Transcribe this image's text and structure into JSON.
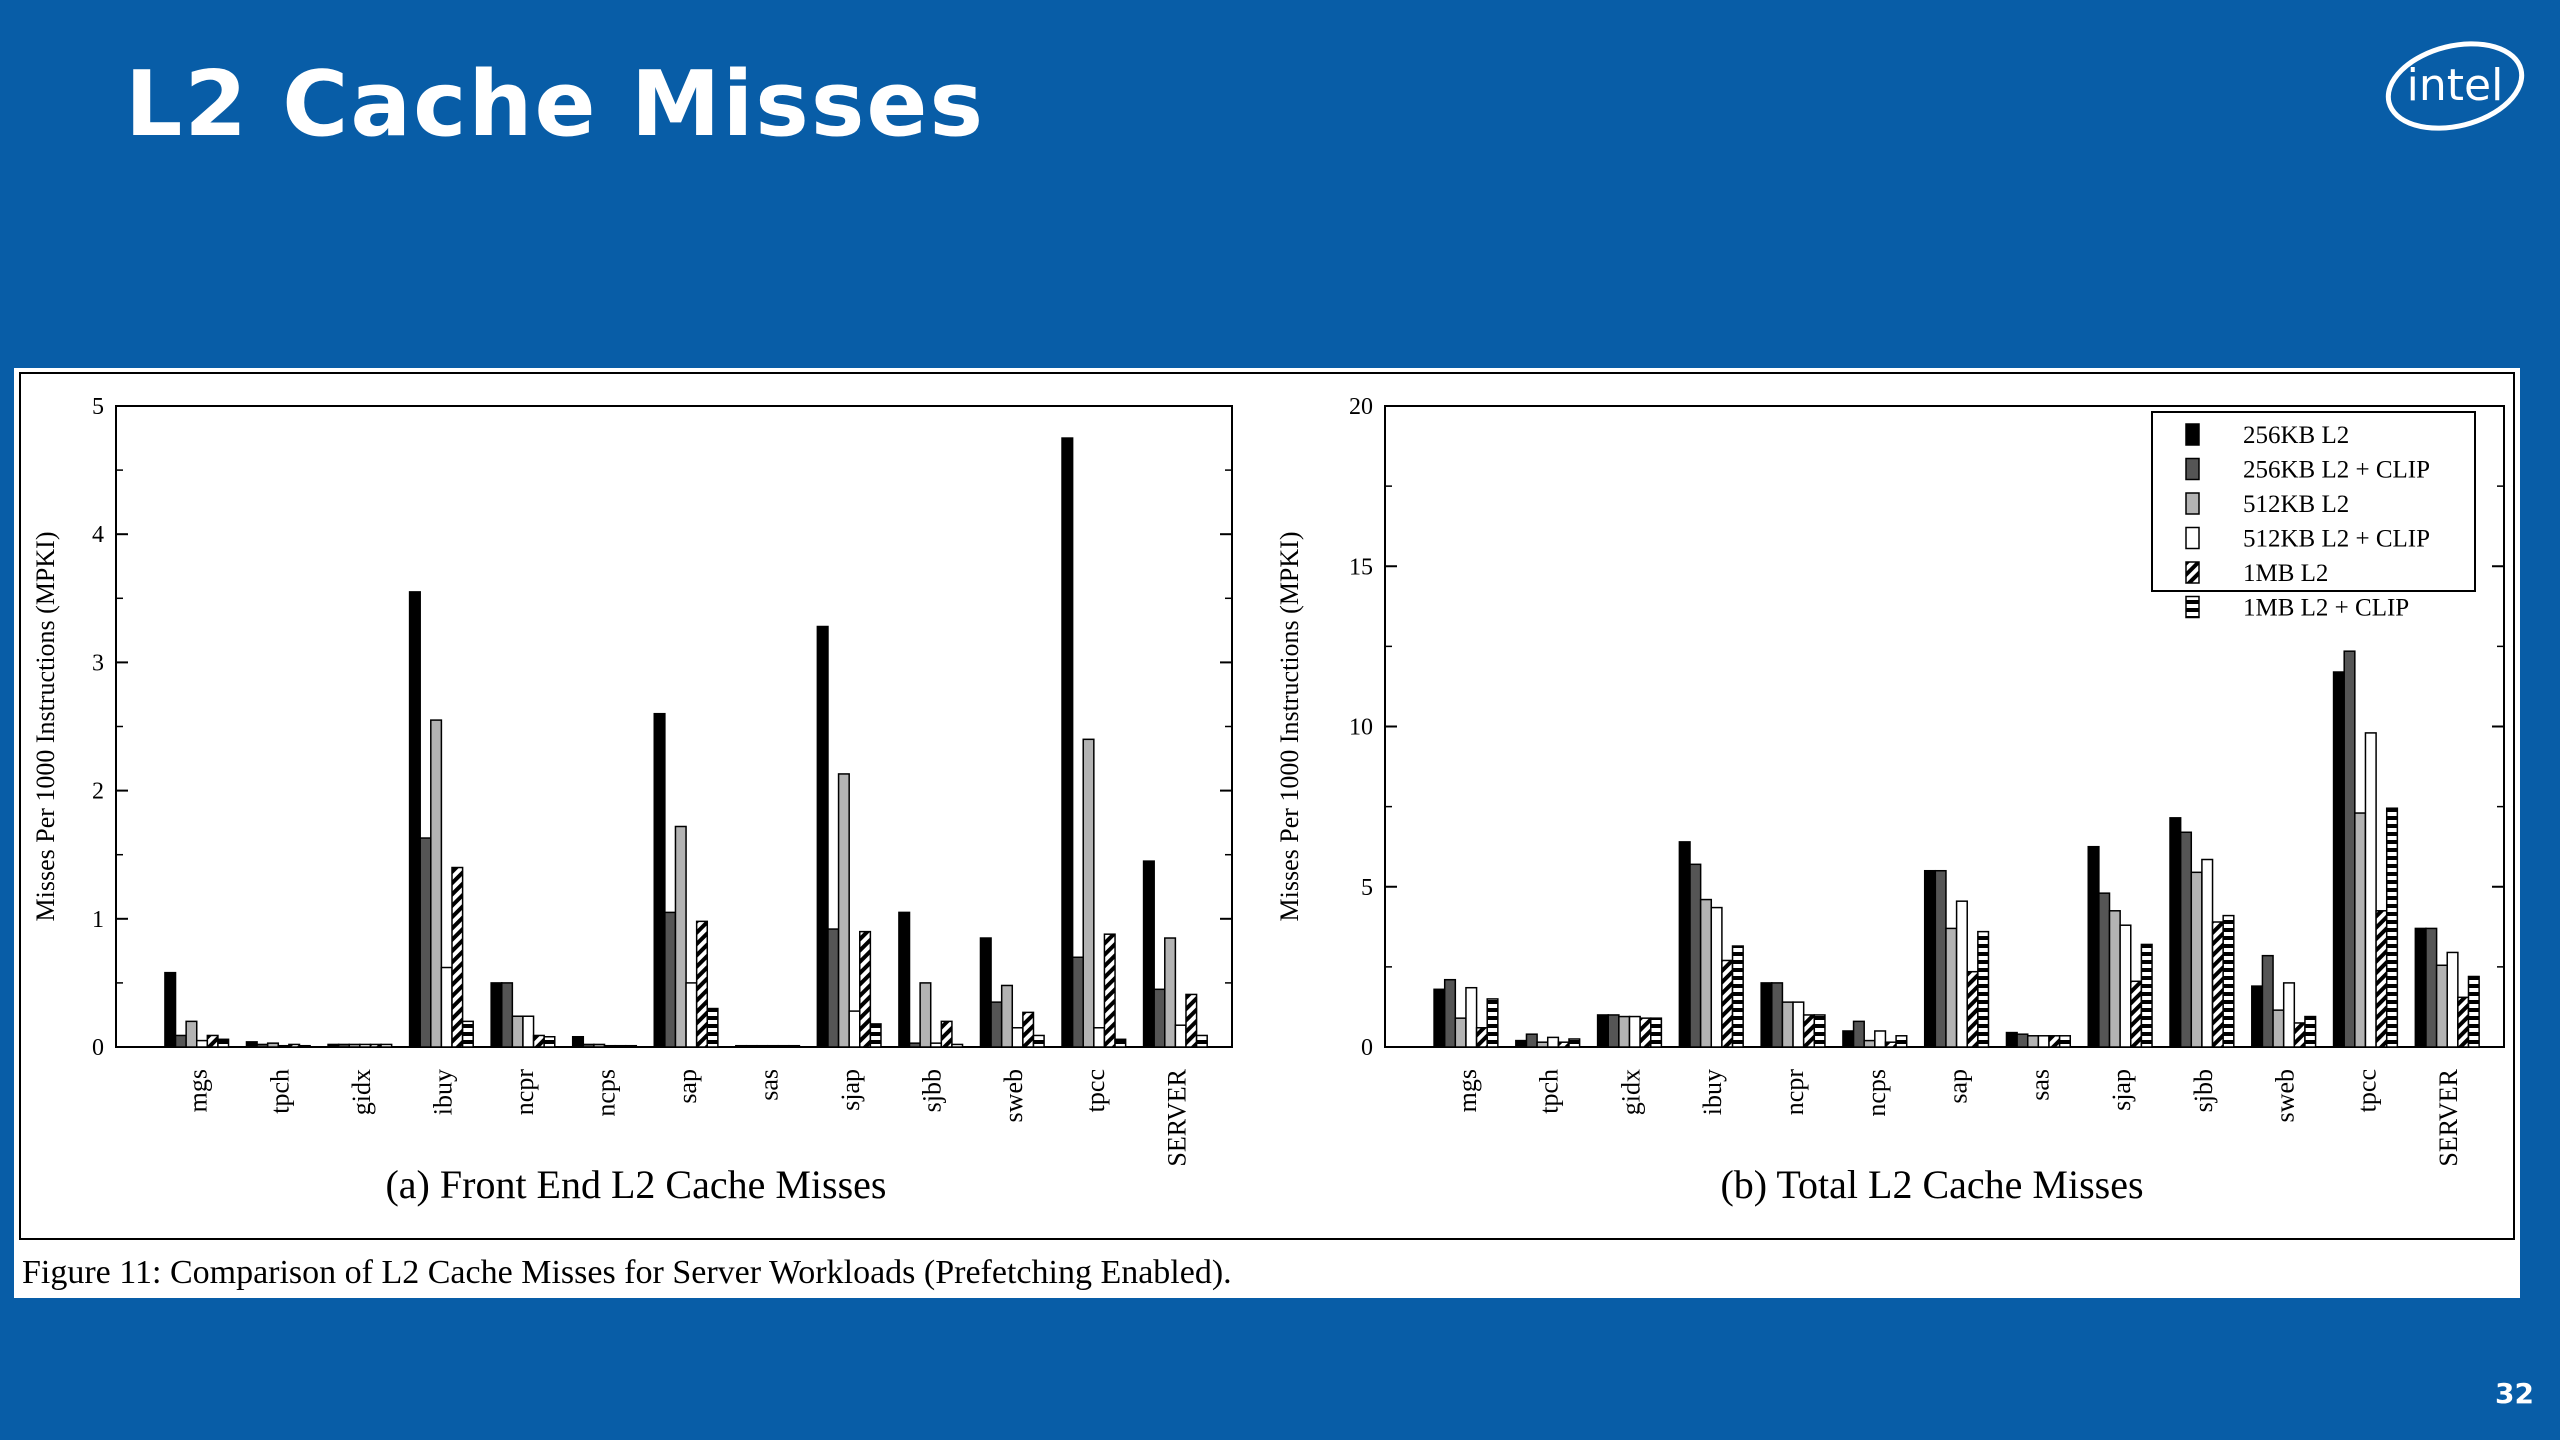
{
  "slide": {
    "title": "L2 Cache Misses",
    "page_number": "32",
    "logo_text": "intel"
  },
  "caption": "Figure 11:  Comparison of L2 Cache Misses for Server Workloads (Prefetching Enabled).",
  "colors": {
    "background": "#085da7",
    "title": "#ffffff",
    "panel": "#ffffff"
  },
  "legend": {
    "placement": "top-right",
    "entries": [
      {
        "label": "256KB L2",
        "pattern": "black"
      },
      {
        "label": "256KB L2 + CLIP",
        "pattern": "dark-gray"
      },
      {
        "label": "512KB L2",
        "pattern": "light-gray"
      },
      {
        "label": "512KB L2 + CLIP",
        "pattern": "white"
      },
      {
        "label": "1MB L2",
        "pattern": "diagonal"
      },
      {
        "label": "1MB L2 + CLIP",
        "pattern": "horizontal"
      }
    ]
  },
  "chart_data": [
    {
      "type": "bar",
      "title": "(a) Front End L2 Cache Misses",
      "ylabel": "Misses Per 1000 Instructions (MPKI)",
      "ylim": [
        0,
        5
      ],
      "yticks": [
        "0",
        "1",
        "2",
        "3",
        "4",
        "5"
      ],
      "categories": [
        "mgs",
        "tpch",
        "gidx",
        "ibuy",
        "ncpr",
        "ncps",
        "sap",
        "sas",
        "sjap",
        "sjbb",
        "sweb",
        "tpcc",
        "SERVER"
      ],
      "series": [
        {
          "name": "256KB L2",
          "values": [
            0.58,
            0.04,
            0.02,
            3.55,
            0.5,
            0.08,
            2.6,
            0.01,
            3.28,
            1.05,
            0.85,
            4.75,
            1.45
          ]
        },
        {
          "name": "256KB L2 + CLIP",
          "values": [
            0.09,
            0.02,
            0.02,
            1.63,
            0.5,
            0.02,
            1.05,
            0.01,
            0.92,
            0.03,
            0.35,
            0.7,
            0.45
          ]
        },
        {
          "name": "512KB L2",
          "values": [
            0.2,
            0.03,
            0.02,
            2.55,
            0.24,
            0.02,
            1.72,
            0.01,
            2.13,
            0.5,
            0.48,
            2.4,
            0.85
          ]
        },
        {
          "name": "512KB L2 + CLIP",
          "values": [
            0.05,
            0.01,
            0.02,
            0.62,
            0.24,
            0.01,
            0.5,
            0.01,
            0.28,
            0.03,
            0.15,
            0.15,
            0.17
          ]
        },
        {
          "name": "1MB L2",
          "values": [
            0.09,
            0.02,
            0.02,
            1.4,
            0.09,
            0.01,
            0.98,
            0.01,
            0.9,
            0.2,
            0.27,
            0.88,
            0.41
          ]
        },
        {
          "name": "1MB L2 + CLIP",
          "values": [
            0.06,
            0.01,
            0.02,
            0.2,
            0.08,
            0.01,
            0.3,
            0.01,
            0.18,
            0.02,
            0.09,
            0.06,
            0.09
          ]
        }
      ]
    },
    {
      "type": "bar",
      "title": "(b) Total L2 Cache Misses",
      "ylabel": "Misses Per 1000 Instructions (MPKI)",
      "ylim": [
        0,
        20
      ],
      "yticks": [
        "0",
        "5",
        "10",
        "15",
        "20"
      ],
      "categories": [
        "mgs",
        "tpch",
        "gidx",
        "ibuy",
        "ncpr",
        "ncps",
        "sap",
        "sas",
        "sjap",
        "sjbb",
        "sweb",
        "tpcc",
        "SERVER"
      ],
      "series": [
        {
          "name": "256KB L2",
          "values": [
            1.8,
            0.2,
            1.0,
            6.4,
            2.0,
            0.5,
            5.5,
            0.45,
            6.25,
            7.15,
            1.9,
            11.7,
            3.7
          ]
        },
        {
          "name": "256KB L2 + CLIP",
          "values": [
            2.1,
            0.4,
            1.0,
            5.7,
            2.0,
            0.8,
            5.5,
            0.4,
            4.8,
            6.7,
            2.85,
            12.35,
            3.7
          ]
        },
        {
          "name": "512KB L2",
          "values": [
            0.9,
            0.15,
            0.95,
            4.6,
            1.4,
            0.2,
            3.7,
            0.35,
            4.25,
            5.45,
            1.15,
            7.3,
            2.55
          ]
        },
        {
          "name": "512KB L2 + CLIP",
          "values": [
            1.85,
            0.3,
            0.95,
            4.35,
            1.4,
            0.5,
            4.55,
            0.35,
            3.8,
            5.85,
            2.0,
            9.8,
            2.95
          ]
        },
        {
          "name": "1MB L2",
          "values": [
            0.6,
            0.15,
            0.9,
            2.7,
            1.0,
            0.15,
            2.35,
            0.35,
            2.05,
            3.9,
            0.75,
            4.25,
            1.55
          ]
        },
        {
          "name": "1MB L2 + CLIP",
          "values": [
            1.5,
            0.25,
            0.9,
            3.15,
            1.0,
            0.35,
            3.6,
            0.35,
            3.2,
            4.1,
            0.95,
            7.45,
            2.2
          ]
        }
      ]
    }
  ]
}
